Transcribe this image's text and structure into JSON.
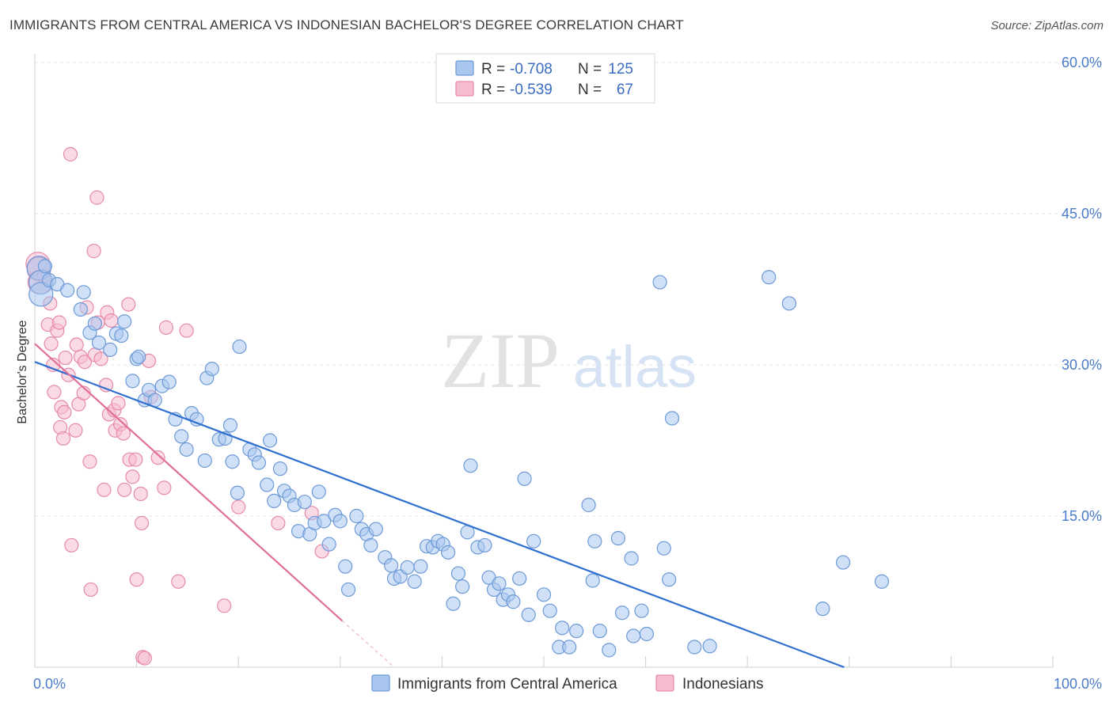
{
  "header": {
    "title": "IMMIGRANTS FROM CENTRAL AMERICA VS INDONESIAN BACHELOR'S DEGREE CORRELATION CHART",
    "source": "Source: ZipAtlas.com"
  },
  "watermark": {
    "zip": "ZIP",
    "atlas": "atlas"
  },
  "legend": {
    "r_label": "R =",
    "n_label": "N =",
    "series1": {
      "r": "-0.708",
      "n": "125"
    },
    "series2": {
      "r": "-0.539",
      "n": "67"
    }
  },
  "colors": {
    "blue_fill": "#a9c6ee",
    "blue_stroke": "#6d9ad8",
    "blue_line": "#2f6fd0",
    "pink_fill": "#f5bccf",
    "pink_stroke": "#e68aa9",
    "pink_line": "#e0709a",
    "grid": "#e3e3e3"
  },
  "chart_data": {
    "type": "scatter",
    "title": "IMMIGRANTS FROM CENTRAL AMERICA VS INDONESIAN BACHELOR'S DEGREE CORRELATION CHART",
    "xlabel": "",
    "ylabel": "Bachelor's Degree",
    "xlim": [
      0,
      100
    ],
    "ylim": [
      0,
      60
    ],
    "x_tick_labels": [
      "0.0%",
      "100.0%"
    ],
    "y_ticks": [
      15,
      30,
      45,
      60
    ],
    "y_tick_labels": [
      "15.0%",
      "30.0%",
      "45.0%",
      "60.0%"
    ],
    "grid": true,
    "legend_position": "top-center",
    "series": [
      {
        "name": "Immigrants from Central America",
        "r": -0.708,
        "n": 125,
        "trend": {
          "x": [
            0,
            79.5
          ],
          "y": [
            30.3,
            0
          ]
        },
        "points": [
          [
            0.4,
            39.6
          ],
          [
            0.6,
            38.2
          ],
          [
            0.6,
            37.0
          ],
          [
            1.0,
            39.8
          ],
          [
            1.4,
            38.4
          ],
          [
            2.2,
            38.0
          ],
          [
            3.2,
            37.4
          ],
          [
            4.5,
            35.5
          ],
          [
            4.8,
            37.2
          ],
          [
            5.4,
            33.2
          ],
          [
            5.9,
            34.1
          ],
          [
            6.3,
            32.2
          ],
          [
            7.4,
            31.5
          ],
          [
            8.0,
            33.1
          ],
          [
            8.5,
            32.9
          ],
          [
            8.8,
            34.3
          ],
          [
            9.6,
            28.4
          ],
          [
            10.0,
            30.6
          ],
          [
            10.2,
            30.8
          ],
          [
            10.8,
            26.5
          ],
          [
            11.2,
            27.5
          ],
          [
            11.8,
            26.5
          ],
          [
            12.5,
            27.9
          ],
          [
            13.2,
            28.3
          ],
          [
            13.8,
            24.6
          ],
          [
            14.4,
            22.9
          ],
          [
            14.9,
            21.6
          ],
          [
            15.4,
            25.2
          ],
          [
            15.9,
            24.6
          ],
          [
            16.7,
            20.5
          ],
          [
            16.9,
            28.7
          ],
          [
            17.4,
            29.6
          ],
          [
            18.1,
            22.6
          ],
          [
            18.7,
            22.7
          ],
          [
            19.2,
            24.0
          ],
          [
            19.4,
            20.4
          ],
          [
            19.9,
            17.3
          ],
          [
            20.1,
            31.8
          ],
          [
            21.1,
            21.6
          ],
          [
            21.6,
            21.1
          ],
          [
            22.0,
            20.3
          ],
          [
            22.8,
            18.1
          ],
          [
            23.1,
            22.5
          ],
          [
            23.5,
            16.5
          ],
          [
            24.1,
            19.7
          ],
          [
            24.5,
            17.5
          ],
          [
            25.0,
            17.0
          ],
          [
            25.5,
            16.1
          ],
          [
            25.9,
            13.5
          ],
          [
            26.5,
            16.4
          ],
          [
            27.0,
            13.2
          ],
          [
            27.5,
            14.3
          ],
          [
            27.9,
            17.4
          ],
          [
            28.4,
            14.5
          ],
          [
            28.9,
            12.2
          ],
          [
            29.5,
            15.1
          ],
          [
            30.0,
            14.5
          ],
          [
            30.5,
            10.0
          ],
          [
            30.8,
            7.7
          ],
          [
            31.6,
            15.0
          ],
          [
            32.1,
            13.7
          ],
          [
            32.6,
            13.2
          ],
          [
            33.0,
            12.1
          ],
          [
            33.5,
            13.7
          ],
          [
            34.4,
            10.9
          ],
          [
            35.0,
            10.1
          ],
          [
            35.3,
            8.8
          ],
          [
            35.9,
            9.0
          ],
          [
            36.6,
            9.9
          ],
          [
            37.3,
            8.5
          ],
          [
            37.9,
            10.0
          ],
          [
            38.5,
            12.0
          ],
          [
            39.1,
            11.9
          ],
          [
            39.6,
            12.5
          ],
          [
            40.1,
            12.2
          ],
          [
            40.6,
            11.4
          ],
          [
            41.1,
            6.3
          ],
          [
            41.6,
            9.3
          ],
          [
            42.0,
            8.0
          ],
          [
            42.5,
            13.4
          ],
          [
            42.8,
            20.0
          ],
          [
            43.5,
            11.9
          ],
          [
            44.2,
            12.1
          ],
          [
            44.6,
            8.9
          ],
          [
            45.1,
            7.7
          ],
          [
            45.6,
            8.3
          ],
          [
            46.0,
            6.7
          ],
          [
            46.5,
            7.2
          ],
          [
            47.0,
            6.5
          ],
          [
            47.6,
            8.8
          ],
          [
            48.1,
            18.7
          ],
          [
            48.5,
            5.2
          ],
          [
            49.0,
            12.5
          ],
          [
            50.0,
            7.2
          ],
          [
            50.6,
            5.6
          ],
          [
            51.5,
            2.0
          ],
          [
            51.8,
            3.9
          ],
          [
            52.5,
            2.0
          ],
          [
            53.2,
            3.6
          ],
          [
            54.4,
            16.1
          ],
          [
            54.8,
            8.6
          ],
          [
            55.0,
            12.5
          ],
          [
            55.5,
            3.6
          ],
          [
            56.4,
            1.7
          ],
          [
            57.3,
            12.8
          ],
          [
            57.7,
            5.4
          ],
          [
            58.6,
            10.8
          ],
          [
            58.8,
            3.1
          ],
          [
            59.6,
            5.6
          ],
          [
            60.1,
            3.3
          ],
          [
            61.4,
            38.2
          ],
          [
            61.8,
            11.8
          ],
          [
            62.3,
            8.7
          ],
          [
            62.6,
            24.7
          ],
          [
            64.8,
            2.0
          ],
          [
            66.3,
            2.1
          ],
          [
            72.1,
            38.7
          ],
          [
            74.1,
            36.1
          ],
          [
            77.4,
            5.8
          ],
          [
            79.4,
            10.4
          ],
          [
            83.2,
            8.5
          ]
        ]
      },
      {
        "name": "Indonesians",
        "r": -0.539,
        "n": 67,
        "trend": {
          "x": [
            0,
            30.2
          ],
          "y": [
            32.1,
            4.6
          ]
        },
        "trend_dash": {
          "x": [
            30.2,
            35.3
          ],
          "y": [
            4.6,
            0
          ]
        },
        "points": [
          [
            0.3,
            40.0
          ],
          [
            0.4,
            39.5
          ],
          [
            0.5,
            38.2
          ],
          [
            0.9,
            38.8
          ],
          [
            1.3,
            34.0
          ],
          [
            1.5,
            36.1
          ],
          [
            1.6,
            32.1
          ],
          [
            1.8,
            30.0
          ],
          [
            1.9,
            27.3
          ],
          [
            2.2,
            33.4
          ],
          [
            2.4,
            34.2
          ],
          [
            2.5,
            23.8
          ],
          [
            2.6,
            25.8
          ],
          [
            2.8,
            22.7
          ],
          [
            2.9,
            25.3
          ],
          [
            3.0,
            30.7
          ],
          [
            3.3,
            29.0
          ],
          [
            3.5,
            50.9
          ],
          [
            3.6,
            12.1
          ],
          [
            4.0,
            23.5
          ],
          [
            4.1,
            32.0
          ],
          [
            4.3,
            26.1
          ],
          [
            4.5,
            30.8
          ],
          [
            4.8,
            27.2
          ],
          [
            4.9,
            30.3
          ],
          [
            5.1,
            35.7
          ],
          [
            5.4,
            20.4
          ],
          [
            5.5,
            7.7
          ],
          [
            5.8,
            41.3
          ],
          [
            5.9,
            31.0
          ],
          [
            6.1,
            46.6
          ],
          [
            6.2,
            34.2
          ],
          [
            6.5,
            30.6
          ],
          [
            6.8,
            17.6
          ],
          [
            7.0,
            28.0
          ],
          [
            7.1,
            35.2
          ],
          [
            7.3,
            25.1
          ],
          [
            7.5,
            34.4
          ],
          [
            7.8,
            25.5
          ],
          [
            7.9,
            23.5
          ],
          [
            8.2,
            26.2
          ],
          [
            8.4,
            24.1
          ],
          [
            8.7,
            23.2
          ],
          [
            8.8,
            17.6
          ],
          [
            9.2,
            36.0
          ],
          [
            9.3,
            20.6
          ],
          [
            9.6,
            18.9
          ],
          [
            9.9,
            20.6
          ],
          [
            10.0,
            8.7
          ],
          [
            10.4,
            17.2
          ],
          [
            10.5,
            14.3
          ],
          [
            10.6,
            1.0
          ],
          [
            10.8,
            0.9
          ],
          [
            11.2,
            30.4
          ],
          [
            11.4,
            26.8
          ],
          [
            12.1,
            20.8
          ],
          [
            12.7,
            17.8
          ],
          [
            12.9,
            33.7
          ],
          [
            14.1,
            8.5
          ],
          [
            14.9,
            33.4
          ],
          [
            18.6,
            6.1
          ],
          [
            20.0,
            15.9
          ],
          [
            23.9,
            14.3
          ],
          [
            27.2,
            15.3
          ],
          [
            28.2,
            11.5
          ]
        ]
      }
    ]
  },
  "bottom_legend": {
    "series1": "Immigrants from Central America",
    "series2": "Indonesians"
  }
}
